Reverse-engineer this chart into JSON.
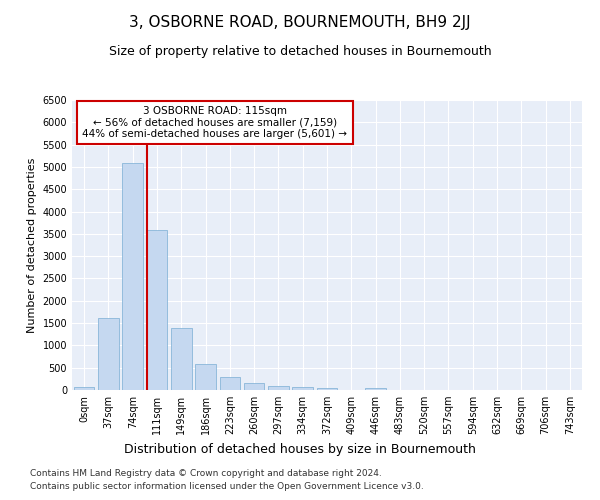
{
  "title": "3, OSBORNE ROAD, BOURNEMOUTH, BH9 2JJ",
  "subtitle": "Size of property relative to detached houses in Bournemouth",
  "xlabel": "Distribution of detached houses by size in Bournemouth",
  "ylabel": "Number of detached properties",
  "footnote1": "Contains HM Land Registry data © Crown copyright and database right 2024.",
  "footnote2": "Contains public sector information licensed under the Open Government Licence v3.0.",
  "categories": [
    "0sqm",
    "37sqm",
    "74sqm",
    "111sqm",
    "149sqm",
    "186sqm",
    "223sqm",
    "260sqm",
    "297sqm",
    "334sqm",
    "372sqm",
    "409sqm",
    "446sqm",
    "483sqm",
    "520sqm",
    "557sqm",
    "594sqm",
    "632sqm",
    "669sqm",
    "706sqm",
    "743sqm"
  ],
  "values": [
    75,
    1620,
    5080,
    3590,
    1400,
    590,
    290,
    150,
    100,
    75,
    55,
    0,
    45,
    0,
    0,
    0,
    0,
    0,
    0,
    0,
    0
  ],
  "bar_color": "#c5d8f0",
  "bar_edge_color": "#7aadd4",
  "vline_x_index": 3,
  "vline_color": "#cc0000",
  "annotation_text": "3 OSBORNE ROAD: 115sqm\n← 56% of detached houses are smaller (7,159)\n44% of semi-detached houses are larger (5,601) →",
  "annotation_box_color": "#cc0000",
  "ylim": [
    0,
    6500
  ],
  "yticks": [
    0,
    500,
    1000,
    1500,
    2000,
    2500,
    3000,
    3500,
    4000,
    4500,
    5000,
    5500,
    6000,
    6500
  ],
  "background_color": "#e8eef8",
  "grid_color": "#ffffff",
  "title_fontsize": 11,
  "subtitle_fontsize": 9,
  "xlabel_fontsize": 9,
  "ylabel_fontsize": 8,
  "tick_fontsize": 7,
  "footnote_fontsize": 6.5,
  "annotation_fontsize": 7.5
}
